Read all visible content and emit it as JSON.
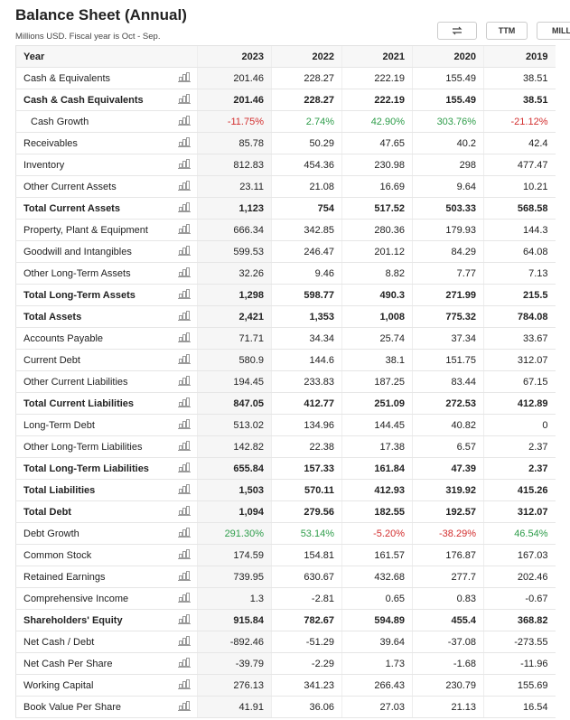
{
  "header": {
    "title": "Balance Sheet (Annual)",
    "subtitle": "Millions USD. Fiscal year is Oct - Sep.",
    "buttons": [
      "TTM",
      "MILL"
    ]
  },
  "table": {
    "columns": [
      "Year",
      "2023",
      "2022",
      "2021",
      "2020",
      "2019"
    ],
    "rows": [
      {
        "cells": [
          "Cash & Equivalents",
          "201.46",
          "228.27",
          "222.19",
          "155.49",
          "38.51"
        ]
      },
      {
        "cells": [
          "Cash & Cash Equivalents",
          "201.46",
          "228.27",
          "222.19",
          "155.49",
          "38.51"
        ],
        "bold": true
      },
      {
        "cells": [
          "Cash Growth",
          "-11.75%",
          "2.74%",
          "42.90%",
          "303.76%",
          "-21.12%"
        ],
        "indent": true,
        "signed": true
      },
      {
        "cells": [
          "Receivables",
          "85.78",
          "50.29",
          "47.65",
          "40.2",
          "42.4"
        ]
      },
      {
        "cells": [
          "Inventory",
          "812.83",
          "454.36",
          "230.98",
          "298",
          "477.47"
        ]
      },
      {
        "cells": [
          "Other Current Assets",
          "23.11",
          "21.08",
          "16.69",
          "9.64",
          "10.21"
        ]
      },
      {
        "cells": [
          "Total Current Assets",
          "1,123",
          "754",
          "517.52",
          "503.33",
          "568.58"
        ],
        "bold": true
      },
      {
        "cells": [
          "Property, Plant & Equipment",
          "666.34",
          "342.85",
          "280.36",
          "179.93",
          "144.3"
        ]
      },
      {
        "cells": [
          "Goodwill and Intangibles",
          "599.53",
          "246.47",
          "201.12",
          "84.29",
          "64.08"
        ]
      },
      {
        "cells": [
          "Other Long-Term Assets",
          "32.26",
          "9.46",
          "8.82",
          "7.77",
          "7.13"
        ]
      },
      {
        "cells": [
          "Total Long-Term Assets",
          "1,298",
          "598.77",
          "490.3",
          "271.99",
          "215.5"
        ],
        "bold": true
      },
      {
        "cells": [
          "Total Assets",
          "2,421",
          "1,353",
          "1,008",
          "775.32",
          "784.08"
        ],
        "bold": true
      },
      {
        "cells": [
          "Accounts Payable",
          "71.71",
          "34.34",
          "25.74",
          "37.34",
          "33.67"
        ]
      },
      {
        "cells": [
          "Current Debt",
          "580.9",
          "144.6",
          "38.1",
          "151.75",
          "312.07"
        ]
      },
      {
        "cells": [
          "Other Current Liabilities",
          "194.45",
          "233.83",
          "187.25",
          "83.44",
          "67.15"
        ]
      },
      {
        "cells": [
          "Total Current Liabilities",
          "847.05",
          "412.77",
          "251.09",
          "272.53",
          "412.89"
        ],
        "bold": true
      },
      {
        "cells": [
          "Long-Term Debt",
          "513.02",
          "134.96",
          "144.45",
          "40.82",
          "0"
        ]
      },
      {
        "cells": [
          "Other Long-Term Liabilities",
          "142.82",
          "22.38",
          "17.38",
          "6.57",
          "2.37"
        ]
      },
      {
        "cells": [
          "Total Long-Term Liabilities",
          "655.84",
          "157.33",
          "161.84",
          "47.39",
          "2.37"
        ],
        "bold": true
      },
      {
        "cells": [
          "Total Liabilities",
          "1,503",
          "570.11",
          "412.93",
          "319.92",
          "415.26"
        ],
        "bold": true
      },
      {
        "cells": [
          "Total Debt",
          "1,094",
          "279.56",
          "182.55",
          "192.57",
          "312.07"
        ],
        "bold": true
      },
      {
        "cells": [
          "Debt Growth",
          "291.30%",
          "53.14%",
          "-5.20%",
          "-38.29%",
          "46.54%"
        ],
        "signed": true
      },
      {
        "cells": [
          "Common Stock",
          "174.59",
          "154.81",
          "161.57",
          "176.87",
          "167.03"
        ]
      },
      {
        "cells": [
          "Retained Earnings",
          "739.95",
          "630.67",
          "432.68",
          "277.7",
          "202.46"
        ]
      },
      {
        "cells": [
          "Comprehensive Income",
          "1.3",
          "-2.81",
          "0.65",
          "0.83",
          "-0.67"
        ]
      },
      {
        "cells": [
          "Shareholders' Equity",
          "915.84",
          "782.67",
          "594.89",
          "455.4",
          "368.82"
        ],
        "bold": true
      },
      {
        "cells": [
          "Net Cash / Debt",
          "-892.46",
          "-51.29",
          "39.64",
          "-37.08",
          "-273.55"
        ]
      },
      {
        "cells": [
          "Net Cash Per Share",
          "-39.79",
          "-2.29",
          "1.73",
          "-1.68",
          "-11.96"
        ]
      },
      {
        "cells": [
          "Working Capital",
          "276.13",
          "341.23",
          "266.43",
          "230.79",
          "155.69"
        ]
      },
      {
        "cells": [
          "Book Value Per Share",
          "41.91",
          "36.06",
          "27.03",
          "21.13",
          "16.54"
        ]
      }
    ]
  }
}
